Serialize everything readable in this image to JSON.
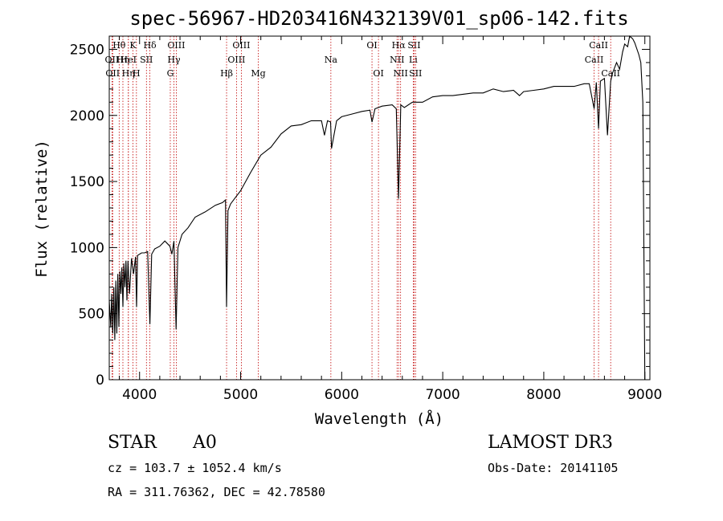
{
  "chart_data": {
    "type": "line",
    "title": "spec-56967-HD203416N432139V01_sp06-142.fits",
    "xlabel": "Wavelength (Å)",
    "ylabel": "Flux (relative)",
    "xlim": [
      3700,
      9050
    ],
    "ylim": [
      0,
      2600
    ],
    "xticks": [
      4000,
      5000,
      6000,
      7000,
      8000,
      9000
    ],
    "yticks": [
      0,
      500,
      1000,
      1500,
      2000,
      2500
    ],
    "xtick_labels": [
      "4000",
      "5000",
      "6000",
      "7000",
      "8000",
      "9000"
    ],
    "ytick_labels": [
      "0",
      "500",
      "1000",
      "1500",
      "2000",
      "2500"
    ],
    "grid": false,
    "series": [
      {
        "x": [
          3700,
          3715,
          3725,
          3735,
          3745,
          3755,
          3765,
          3775,
          3785,
          3795,
          3805,
          3815,
          3825,
          3835,
          3845,
          3855,
          3865,
          3875,
          3885,
          3900,
          3920,
          3940,
          3960,
          3970,
          3980,
          4000,
          4020,
          4050,
          4080,
          4102,
          4120,
          4150,
          4200,
          4250,
          4300,
          4320,
          4340,
          4361,
          4380,
          4420,
          4480,
          4550,
          4650,
          4750,
          4820,
          4850,
          4861,
          4875,
          4900,
          4950,
          5000,
          5100,
          5200,
          5300,
          5400,
          5500,
          5600,
          5700,
          5800,
          5830,
          5860,
          5890,
          5900,
          5950,
          6000,
          6100,
          6200,
          6280,
          6300,
          6330,
          6400,
          6500,
          6540,
          6563,
          6585,
          6620,
          6700,
          6800,
          6900,
          7000,
          7100,
          7200,
          7300,
          7400,
          7500,
          7600,
          7700,
          7760,
          7800,
          7900,
          8000,
          8100,
          8200,
          8300,
          8400,
          8450,
          8498,
          8520,
          8542,
          8560,
          8600,
          8630,
          8662,
          8680,
          8720,
          8750,
          8780,
          8800,
          8830,
          8850,
          8880,
          8900,
          8940,
          8960,
          8980,
          9000
        ],
        "y": [
          600,
          400,
          650,
          350,
          700,
          300,
          750,
          350,
          800,
          400,
          820,
          650,
          850,
          550,
          880,
          700,
          900,
          600,
          900,
          650,
          920,
          800,
          930,
          550,
          940,
          950,
          960,
          960,
          970,
          420,
          950,
          990,
          1010,
          1050,
          1010,
          950,
          1050,
          380,
          1000,
          1100,
          1150,
          1230,
          1270,
          1320,
          1340,
          1360,
          550,
          1280,
          1330,
          1380,
          1430,
          1570,
          1700,
          1760,
          1860,
          1920,
          1930,
          1960,
          1960,
          1850,
          1960,
          1950,
          1750,
          1960,
          1990,
          2010,
          2030,
          2040,
          1950,
          2050,
          2070,
          2080,
          2050,
          1370,
          2080,
          2060,
          2100,
          2100,
          2140,
          2150,
          2150,
          2160,
          2170,
          2170,
          2200,
          2180,
          2190,
          2150,
          2180,
          2190,
          2200,
          2220,
          2220,
          2220,
          2240,
          2240,
          2050,
          2250,
          1900,
          2260,
          2280,
          1850,
          2260,
          2320,
          2400,
          2350,
          2480,
          2540,
          2520,
          2600,
          2580,
          2550,
          2460,
          2400,
          2100,
          0
        ]
      }
    ],
    "line_markers": [
      {
        "w": 3727,
        "row": 1,
        "label": "OII"
      },
      {
        "w": 3734,
        "row": 2,
        "label": "OII"
      },
      {
        "w": 3798,
        "row": 0,
        "label": "Hθ"
      },
      {
        "w": 3835,
        "row": 1,
        "label": "Hη"
      },
      {
        "w": 3889,
        "row": 1,
        "label": "HeI"
      },
      {
        "w": 3889,
        "row": 2,
        "label": "Hη"
      },
      {
        "w": 3934,
        "row": 0,
        "label": "K"
      },
      {
        "w": 3969,
        "row": 2,
        "label": "H"
      },
      {
        "w": 4068,
        "row": 1,
        "label": "SII"
      },
      {
        "w": 4102,
        "row": 0,
        "label": "Hδ"
      },
      {
        "w": 4304,
        "row": 2,
        "label": "G"
      },
      {
        "w": 4340,
        "row": 1,
        "label": "Hγ"
      },
      {
        "w": 4363,
        "row": 0,
        "label": "OIII"
      },
      {
        "w": 4861,
        "row": 2,
        "label": "Hβ"
      },
      {
        "w": 4959,
        "row": 1,
        "label": "OIII"
      },
      {
        "w": 5007,
        "row": 0,
        "label": "OIII"
      },
      {
        "w": 5175,
        "row": 2,
        "label": "Mg"
      },
      {
        "w": 5893,
        "row": 1,
        "label": "Na"
      },
      {
        "w": 6300,
        "row": 0,
        "label": "OI"
      },
      {
        "w": 6364,
        "row": 2,
        "label": "OI"
      },
      {
        "w": 6548,
        "row": 1,
        "label": "NII"
      },
      {
        "w": 6563,
        "row": 0,
        "label": "Hα"
      },
      {
        "w": 6583,
        "row": 2,
        "label": "NII"
      },
      {
        "w": 6708,
        "row": 1,
        "label": "Li"
      },
      {
        "w": 6717,
        "row": 0,
        "label": "SII"
      },
      {
        "w": 6731,
        "row": 2,
        "label": "SII"
      },
      {
        "w": 8498,
        "row": 1,
        "label": "CaII"
      },
      {
        "w": 8542,
        "row": 0,
        "label": "CaII"
      },
      {
        "w": 8662,
        "row": 2,
        "label": "CaII"
      }
    ]
  },
  "info": {
    "object": "STAR",
    "subclass": "A0",
    "survey": "LAMOST DR3",
    "cz": "cz = 103.7 ± 1052.4 km/s",
    "obsdate": "Obs-Date: 20141105",
    "radec": "RA = 311.76362, DEC =  42.78580"
  },
  "colors": {
    "axis": "#000000",
    "spectrum": "#000000",
    "line_marker": "#c00000"
  }
}
